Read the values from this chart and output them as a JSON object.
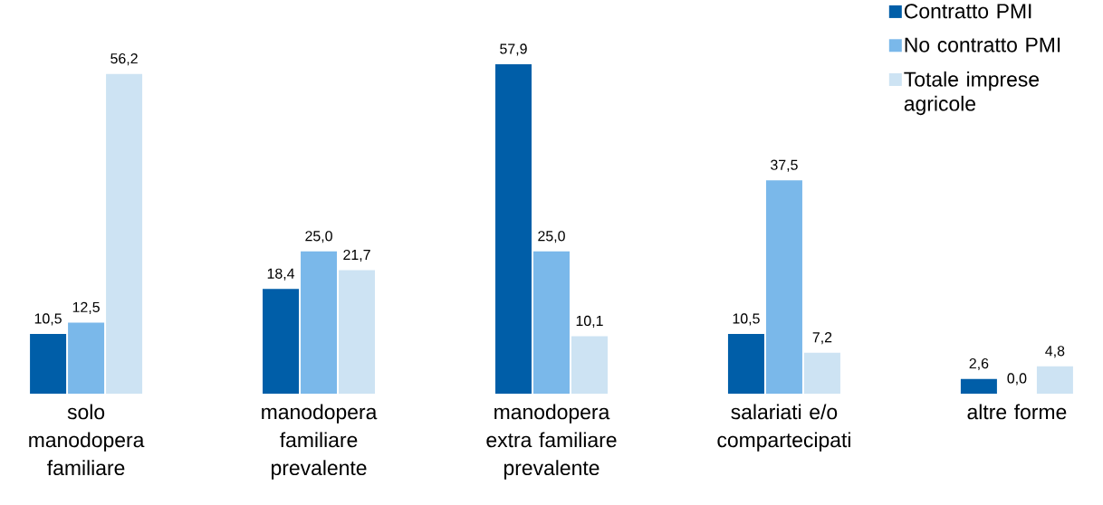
{
  "chart_data": {
    "type": "bar",
    "categories": [
      "solo manodopera familiare",
      "manodopera familiare prevalente",
      "manodopera extra familiare prevalente",
      "salariati e/o compartecipati",
      "altre forme"
    ],
    "series": [
      {
        "name": "Contratto PMI",
        "color": "#005ea8",
        "values": [
          10.5,
          18.4,
          57.9,
          10.5,
          2.6
        ],
        "value_labels": [
          "10,5",
          "18,4",
          "57,9",
          "10,5",
          "2,6"
        ]
      },
      {
        "name": "No contratto PMI",
        "color": "#7ab8ea",
        "values": [
          12.5,
          25.0,
          25.0,
          37.5,
          0.0
        ],
        "value_labels": [
          "12,5",
          "25,0",
          "25,0",
          "37,5",
          "0,0"
        ]
      },
      {
        "name": "Totale imprese agricole",
        "color": "#cde3f3",
        "values": [
          56.2,
          21.7,
          10.1,
          7.2,
          4.8
        ],
        "value_labels": [
          "56,2",
          "21,7",
          "10,1",
          "7,2",
          "4,8"
        ]
      }
    ],
    "legend": "top right"
  }
}
